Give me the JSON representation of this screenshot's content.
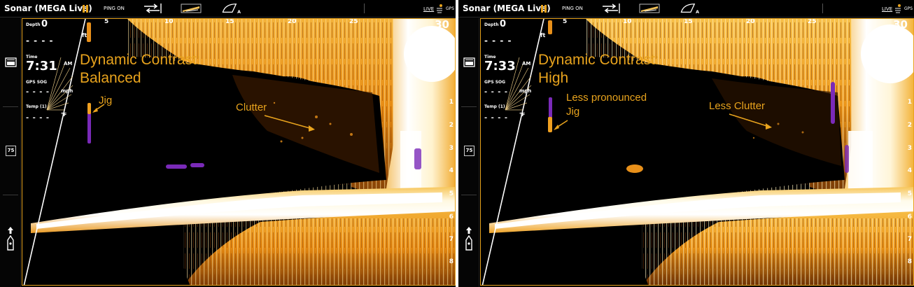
{
  "panels": [
    {
      "app_title": "Sonar (MEGA Live)",
      "ping_status": "PING ON",
      "live_label": "LIVE",
      "gps_label": "GPS",
      "depth_label": "Depth",
      "depth_value": "0",
      "depth_unit": "ft",
      "depth_placeholder": "- - - -",
      "time_label": "Time",
      "time_value": "7:31",
      "time_ampm": "AM",
      "gps_sog_label": "GPS SOG",
      "gps_sog_value": "- - - -",
      "gps_sog_unit": "mph",
      "temp_label": "Temp (1)",
      "temp_value": "- - - -",
      "temp_unit": "°F",
      "temp_badge": "75",
      "range_ticks": [
        "5",
        "10",
        "15",
        "20",
        "25"
      ],
      "range_max": "30",
      "depth_ticks": [
        "1",
        "2",
        "3",
        "4",
        "5",
        "6",
        "7",
        "8"
      ],
      "annotation_title_line1": "Dynamic Contrast:",
      "annotation_title_line2": "Balanced",
      "annotation_jig": "Jig",
      "annotation_clutter": "Clutter",
      "annotation_color": "#e8a31d"
    },
    {
      "app_title": "Sonar (MEGA Live)",
      "ping_status": "PING ON",
      "live_label": "LIVE",
      "gps_label": "GPS",
      "depth_label": "Depth",
      "depth_value": "0",
      "depth_unit": "ft",
      "depth_placeholder": "- - - -",
      "time_label": "Time",
      "time_value": "7:33",
      "time_ampm": "AM",
      "gps_sog_label": "GPS SOG",
      "gps_sog_value": "- - - -",
      "gps_sog_unit": "mph",
      "temp_label": "Temp (1)",
      "temp_value": "- - - -",
      "temp_unit": "°F",
      "temp_badge": "75",
      "range_ticks": [
        "5",
        "10",
        "15",
        "20",
        "25"
      ],
      "range_max": "30",
      "depth_ticks": [
        "1",
        "2",
        "3",
        "4",
        "5",
        "6",
        "7",
        "8"
      ],
      "annotation_title_line1": "Dynamic Contrast:",
      "annotation_title_line2": "High",
      "annotation_jig_line1": "Less pronounced",
      "annotation_jig_line2": "Jig",
      "annotation_clutter": "Less Clutter",
      "annotation_color": "#e8a31d"
    }
  ]
}
